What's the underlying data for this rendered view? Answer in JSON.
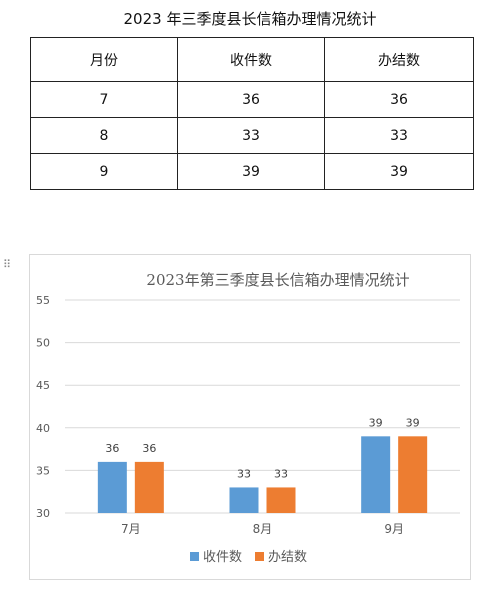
{
  "table": {
    "title": "2023 年三季度县长信箱办理情况统计",
    "headers": [
      "月份",
      "收件数",
      "办结数"
    ],
    "rows": [
      [
        "7",
        "36",
        "36"
      ],
      [
        "8",
        "33",
        "33"
      ],
      [
        "9",
        "39",
        "39"
      ]
    ]
  },
  "drag_handle_icon": "drag-dots-icon",
  "colors": {
    "series1": "#5b9bd5",
    "series2": "#ed7d31",
    "grid": "#d9d9d9"
  },
  "chart_data": {
    "type": "bar",
    "title": "2023年第三季度县长信箱办理情况统计",
    "categories": [
      "7月",
      "8月",
      "9月"
    ],
    "series": [
      {
        "name": "收件数",
        "values": [
          36,
          33,
          39
        ]
      },
      {
        "name": "办结数",
        "values": [
          36,
          33,
          39
        ]
      }
    ],
    "ylim": [
      30,
      55
    ],
    "yticks": [
      30,
      35,
      40,
      45,
      50,
      55
    ],
    "xlabel": "",
    "ylabel": "",
    "grid": true,
    "legend": "bottom",
    "data_labels": true
  }
}
